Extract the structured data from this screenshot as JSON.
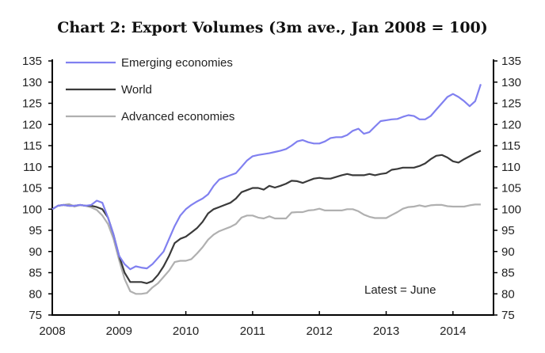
{
  "chart_data": {
    "type": "line",
    "title": "Chart 2: Export Volumes (3m ave., Jan 2008 = 100)",
    "annotation": "Latest = June",
    "x_start": "2008-01",
    "x_frequency": "monthly",
    "x_ticks": [
      "2008",
      "2009",
      "2010",
      "2011",
      "2012",
      "2013",
      "2014"
    ],
    "ylim": [
      75,
      135
    ],
    "y_ticks": [
      75,
      80,
      85,
      90,
      95,
      100,
      105,
      110,
      115,
      120,
      125,
      130,
      135
    ],
    "y_axis_both_sides": true,
    "grid": false,
    "legend_position": "top-left",
    "series": [
      {
        "name": "Emerging economies",
        "color": "#8080f0",
        "values": [
          100,
          100.8,
          101,
          100.8,
          100.8,
          101,
          100.8,
          101,
          102,
          101.5,
          98,
          94,
          89,
          87,
          85.8,
          86.5,
          86.2,
          86,
          87,
          88.5,
          90,
          93,
          96,
          98.5,
          100,
          101,
          101.8,
          102.5,
          103.5,
          105.5,
          107,
          107.5,
          108,
          108.5,
          110,
          111.5,
          112.5,
          112.8,
          113,
          113.2,
          113.5,
          113.8,
          114.2,
          115,
          116,
          116.3,
          115.8,
          115.5,
          115.5,
          116,
          116.8,
          117,
          117,
          117.5,
          118.5,
          119,
          117.8,
          118.2,
          119.5,
          120.8,
          121,
          121.2,
          121.3,
          121.8,
          122.2,
          122,
          121.2,
          121.2,
          122,
          123.5,
          125,
          126.5,
          127.2,
          126.5,
          125.5,
          124.3,
          125.5,
          129.5
        ]
      },
      {
        "name": "World",
        "color": "#3a3a3a",
        "values": [
          100,
          100.8,
          101,
          100.8,
          100.8,
          101,
          100.8,
          100.8,
          100.5,
          100,
          98,
          94,
          89,
          85,
          82.8,
          82.8,
          82.8,
          82.5,
          83,
          84.5,
          86.5,
          89,
          92,
          93,
          93.5,
          94.5,
          95.5,
          97,
          99,
          100,
          100.5,
          101,
          101.5,
          102.5,
          104,
          104.5,
          105,
          105,
          104.6,
          105.5,
          105.1,
          105.5,
          106,
          106.7,
          106.6,
          106.2,
          106.7,
          107.2,
          107.4,
          107.2,
          107.2,
          107.6,
          108,
          108.3,
          108,
          108,
          108,
          108.3,
          108,
          108.3,
          108.5,
          109.3,
          109.5,
          109.8,
          109.8,
          109.8,
          110.2,
          110.8,
          111.8,
          112.6,
          112.8,
          112.2,
          111.3,
          111,
          111.8,
          112.5,
          113.2,
          113.8
        ]
      },
      {
        "name": "Advanced economies",
        "color": "#b0b0b0",
        "values": [
          100,
          100.8,
          101,
          101.2,
          100.6,
          101,
          100.8,
          100.4,
          99.8,
          98.5,
          96.5,
          93,
          88,
          83.5,
          80.6,
          80,
          80,
          80.2,
          81.5,
          82.5,
          84,
          85.5,
          87.5,
          87.8,
          87.8,
          88.2,
          89.5,
          91,
          92.8,
          94,
          94.8,
          95.3,
          95.8,
          96.5,
          98,
          98.5,
          98.5,
          98,
          97.8,
          98.3,
          97.8,
          97.8,
          97.8,
          99.2,
          99.3,
          99.3,
          99.7,
          99.8,
          100.1,
          99.7,
          99.7,
          99.7,
          99.7,
          100,
          100,
          99.5,
          98.7,
          98.2,
          97.9,
          97.9,
          97.9,
          98.6,
          99.3,
          100.1,
          100.5,
          100.6,
          100.9,
          100.6,
          100.9,
          101,
          101,
          100.7,
          100.6,
          100.6,
          100.6,
          100.9,
          101.1,
          101.1
        ]
      }
    ]
  }
}
